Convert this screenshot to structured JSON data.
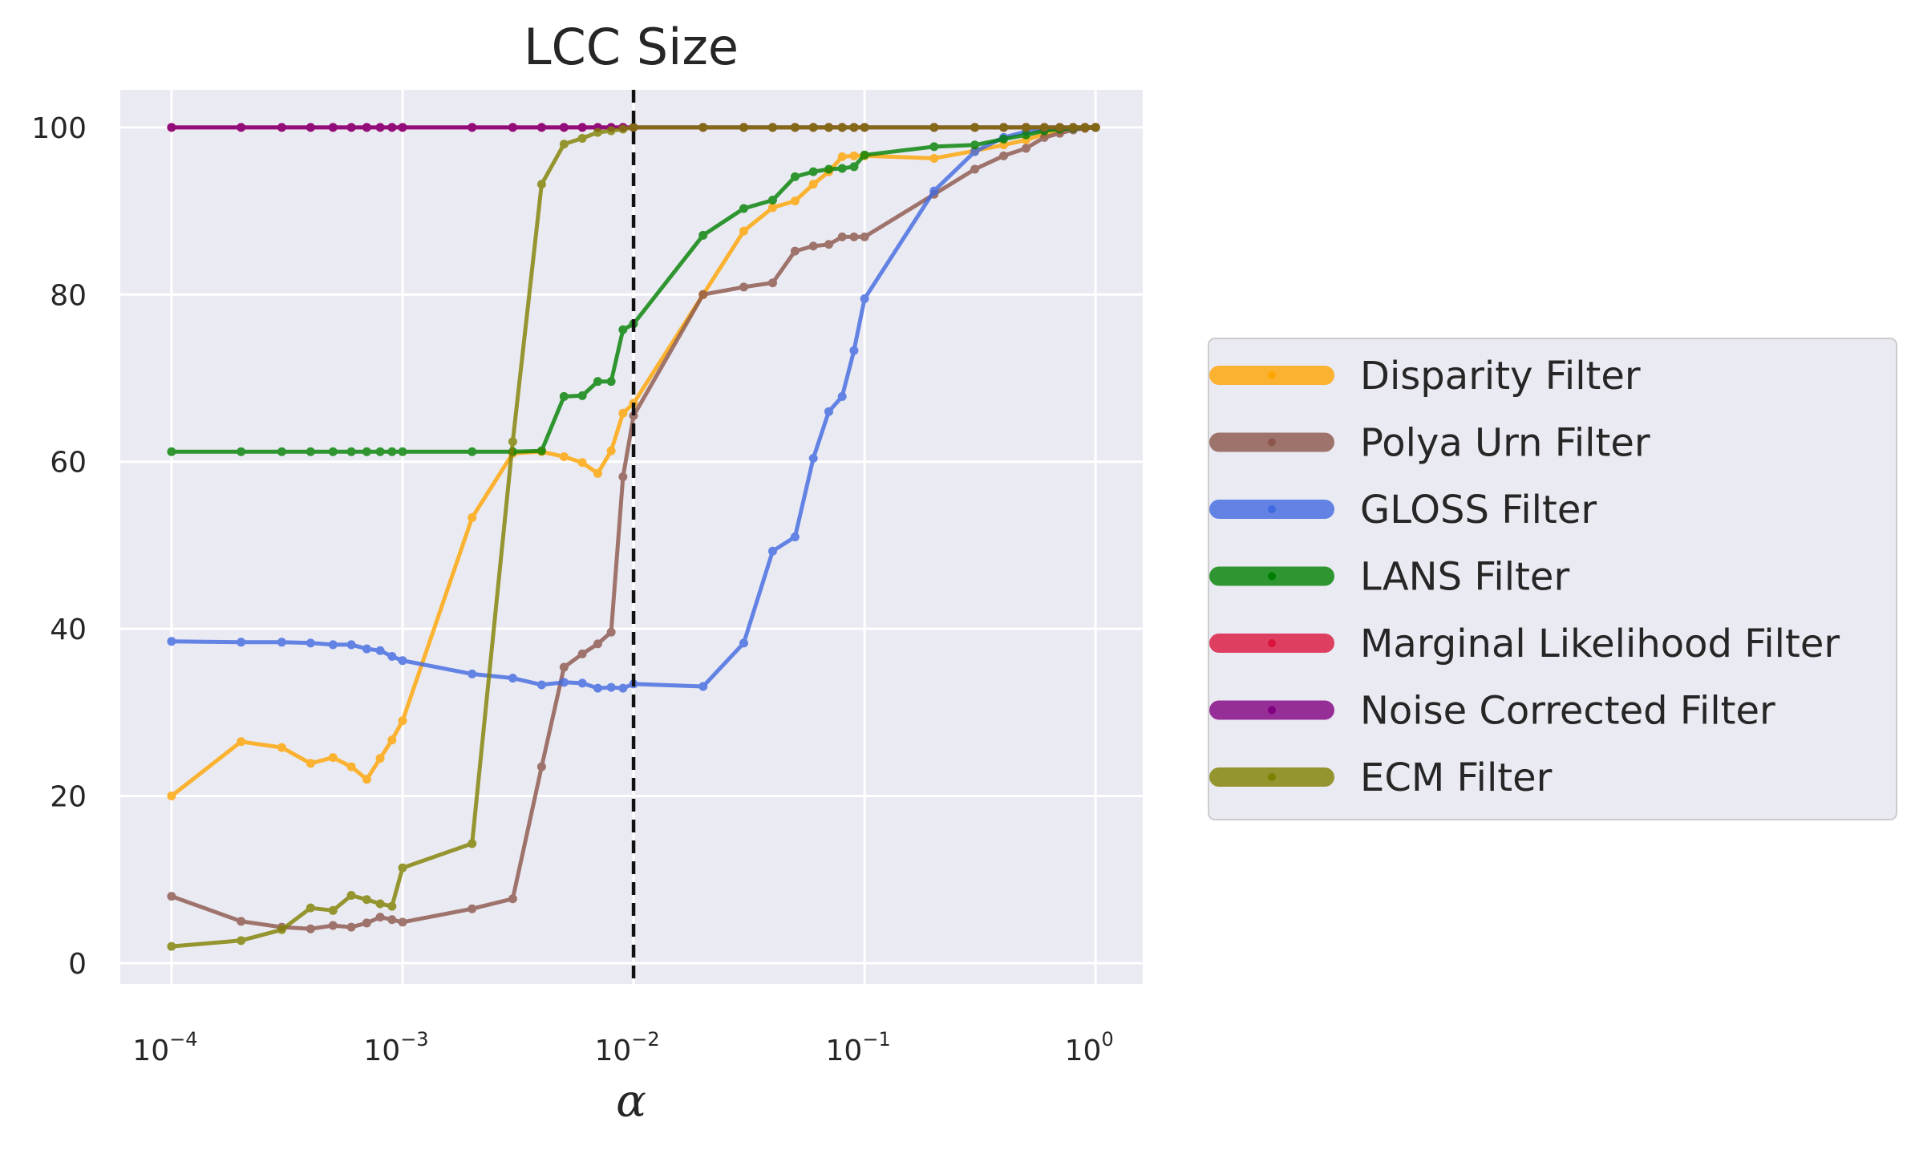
{
  "chart_data": {
    "type": "line",
    "title": "LCC Size",
    "xlabel": "α",
    "ylabel": "",
    "xscale": "log",
    "xlim": [
      6e-05,
      1.6
    ],
    "ylim": [
      -2.5,
      104.5
    ],
    "xticks": [
      {
        "base": "10",
        "exp": "−4",
        "value": 0.0001
      },
      {
        "base": "10",
        "exp": "−3",
        "value": 0.001
      },
      {
        "base": "10",
        "exp": "−2",
        "value": 0.01
      },
      {
        "base": "10",
        "exp": "−1",
        "value": 0.1
      },
      {
        "base": "10",
        "exp": "0",
        "value": 1
      }
    ],
    "yticks": [
      0,
      20,
      40,
      60,
      80,
      100
    ],
    "grid": true,
    "vline": {
      "x": 0.01,
      "style": "dashed",
      "color": "#111111"
    },
    "legend_position": "center-right, outside plot",
    "colors": {
      "plot_background": "#EAEAF2",
      "grid": "#FFFFFF"
    },
    "x": [
      0.0001,
      0.0002,
      0.0003,
      0.0004,
      0.0005,
      0.0006,
      0.0007,
      0.0008,
      0.0009,
      0.001,
      0.002,
      0.003,
      0.004,
      0.005,
      0.006,
      0.007,
      0.008,
      0.009,
      0.01,
      0.02,
      0.03,
      0.04,
      0.05,
      0.06,
      0.07,
      0.08,
      0.09,
      0.1,
      0.2,
      0.3,
      0.4,
      0.5,
      0.6,
      0.7,
      0.8,
      0.9,
      1.0
    ],
    "series": [
      {
        "name": "Disparity Filter",
        "color": "#FFA500",
        "values": [
          20,
          26.5,
          25.8,
          23.9,
          24.6,
          23.5,
          22,
          24.5,
          26.7,
          29,
          53.3,
          61,
          61.2,
          60.6,
          59.9,
          58.6,
          61.3,
          65.8,
          67,
          80,
          87.6,
          90.4,
          91.2,
          93.2,
          94.7,
          96.5,
          96.6,
          96.6,
          96.3,
          97.2,
          97.9,
          98.5,
          99.2,
          99.6,
          99.8,
          99.9,
          100
        ]
      },
      {
        "name": "Polya Urn Filter",
        "color": "#8C564B",
        "values": [
          8,
          5,
          4.3,
          4.1,
          4.5,
          4.3,
          4.8,
          5.5,
          5.2,
          4.9,
          6.5,
          7.7,
          23.5,
          35.4,
          37,
          38.2,
          39.6,
          58.2,
          65.5,
          80,
          80.9,
          81.4,
          85.2,
          85.8,
          86,
          86.9,
          86.9,
          86.9,
          92,
          95,
          96.6,
          97.5,
          98.8,
          99.3,
          99.7,
          99.9,
          100
        ]
      },
      {
        "name": "GLOSS Filter",
        "color": "#4169E1",
        "values": [
          38.5,
          38.4,
          38.4,
          38.3,
          38.1,
          38.1,
          37.6,
          37.4,
          36.7,
          36.2,
          34.6,
          34.1,
          33.3,
          33.6,
          33.5,
          32.9,
          33,
          32.9,
          33.4,
          33.1,
          38.3,
          49.3,
          51,
          60.4,
          66,
          67.8,
          73.3,
          79.5,
          92.4,
          97.1,
          98.8,
          99.5,
          99.8,
          99.9,
          99.9,
          100,
          100
        ]
      },
      {
        "name": "LANS Filter",
        "color": "#008000",
        "values": [
          61.2,
          61.2,
          61.2,
          61.2,
          61.2,
          61.2,
          61.2,
          61.2,
          61.2,
          61.2,
          61.2,
          61.2,
          61.3,
          67.8,
          67.9,
          69.6,
          69.6,
          75.8,
          76.5,
          87.1,
          90.3,
          91.3,
          94.1,
          94.7,
          95,
          95.1,
          95.3,
          96.7,
          97.7,
          97.9,
          98.6,
          99.1,
          99.6,
          99.8,
          99.9,
          100,
          100
        ]
      },
      {
        "name": "Marginal Likelihood Filter",
        "color": "#DC143C",
        "values": [
          100,
          100,
          100,
          100,
          100,
          100,
          100,
          100,
          100,
          100,
          100,
          100,
          100,
          100,
          100,
          100,
          100,
          100,
          100,
          100,
          100,
          100,
          100,
          100,
          100,
          100,
          100,
          100,
          100,
          100,
          100,
          100,
          100,
          100,
          100,
          100,
          100
        ]
      },
      {
        "name": "Noise Corrected Filter",
        "color": "#800080",
        "values": [
          100,
          100,
          100,
          100,
          100,
          100,
          100,
          100,
          100,
          100,
          100,
          100,
          100,
          100,
          100,
          100,
          100,
          100,
          100,
          100,
          100,
          100,
          100,
          100,
          100,
          100,
          100,
          100,
          100,
          100,
          100,
          100,
          100,
          100,
          100,
          100,
          100
        ]
      },
      {
        "name": "ECM Filter",
        "color": "#808000",
        "values": [
          2,
          2.7,
          4,
          6.6,
          6.3,
          8.1,
          7.6,
          7.1,
          6.8,
          11.4,
          14.3,
          62.4,
          93.2,
          98,
          98.7,
          99.4,
          99.6,
          99.8,
          100,
          100,
          100,
          100,
          100,
          100,
          100,
          100,
          100,
          100,
          100,
          100,
          100,
          100,
          100,
          100,
          100,
          100,
          100
        ]
      }
    ]
  }
}
